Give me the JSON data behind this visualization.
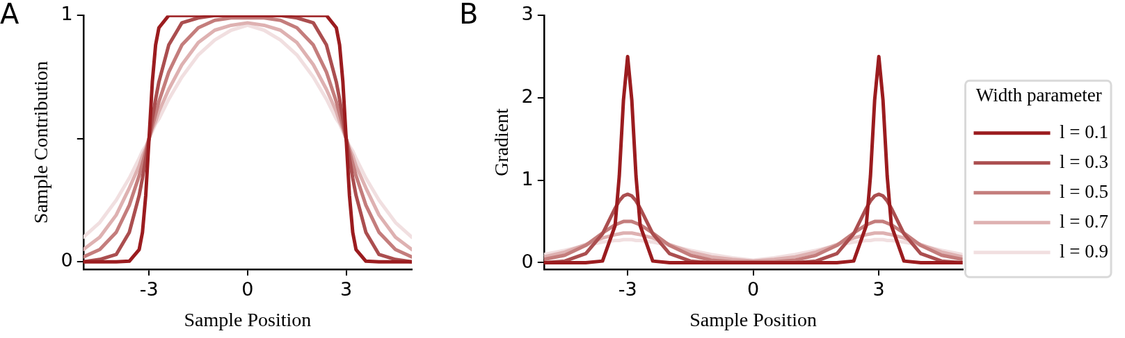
{
  "chart_data": [
    {
      "type": "line",
      "title": "A",
      "xlabel": "Sample Position",
      "ylabel": "Sample Contribution",
      "x": [
        -5,
        -4.5,
        -4,
        -3.6,
        -3.3,
        -3.2,
        -3.1,
        -3,
        -2.9,
        -2.8,
        -2.7,
        -2.4,
        -2,
        -1.5,
        -1,
        -0.5,
        0,
        0.5,
        1,
        1.5,
        2,
        2.4,
        2.7,
        2.8,
        2.9,
        3,
        3.1,
        3.2,
        3.3,
        3.6,
        4,
        4.5,
        5
      ],
      "series": [
        {
          "color": "#9b1c1f",
          "values": [
            0,
            0,
            0,
            0.003,
            0.05,
            0.12,
            0.27,
            0.5,
            0.73,
            0.88,
            0.95,
            1,
            1,
            1,
            1,
            1,
            1,
            1,
            1,
            1,
            1,
            1,
            0.95,
            0.88,
            0.73,
            0.5,
            0.27,
            0.12,
            0.05,
            0.003,
            0,
            0,
            0
          ]
        },
        {
          "color": "#ab4e4f",
          "values": [
            0,
            0.01,
            0.03,
            0.12,
            0.27,
            0.34,
            0.42,
            0.5,
            0.58,
            0.66,
            0.73,
            0.88,
            0.97,
            0.99,
            1,
            1,
            1,
            1,
            1,
            0.99,
            0.97,
            0.88,
            0.73,
            0.66,
            0.58,
            0.5,
            0.42,
            0.34,
            0.27,
            0.12,
            0.03,
            0.01,
            0
          ]
        },
        {
          "color": "#c47d7c",
          "values": [
            0.02,
            0.05,
            0.12,
            0.23,
            0.35,
            0.4,
            0.45,
            0.5,
            0.55,
            0.6,
            0.65,
            0.77,
            0.88,
            0.95,
            0.98,
            0.99,
            0.99,
            0.99,
            0.98,
            0.95,
            0.88,
            0.77,
            0.65,
            0.6,
            0.55,
            0.5,
            0.45,
            0.4,
            0.35,
            0.23,
            0.12,
            0.05,
            0.02
          ]
        },
        {
          "color": "#deb1b1",
          "values": [
            0.05,
            0.1,
            0.19,
            0.3,
            0.39,
            0.43,
            0.46,
            0.5,
            0.54,
            0.57,
            0.61,
            0.7,
            0.8,
            0.89,
            0.94,
            0.96,
            0.97,
            0.96,
            0.94,
            0.89,
            0.8,
            0.7,
            0.61,
            0.57,
            0.54,
            0.5,
            0.46,
            0.43,
            0.39,
            0.3,
            0.19,
            0.1,
            0.05
          ]
        },
        {
          "color": "#f1dfe0",
          "values": [
            0.1,
            0.16,
            0.25,
            0.34,
            0.42,
            0.45,
            0.47,
            0.5,
            0.53,
            0.56,
            0.58,
            0.66,
            0.75,
            0.84,
            0.9,
            0.94,
            0.96,
            0.94,
            0.9,
            0.84,
            0.75,
            0.66,
            0.58,
            0.56,
            0.53,
            0.5,
            0.47,
            0.45,
            0.42,
            0.34,
            0.25,
            0.16,
            0.1
          ]
        }
      ],
      "xlim": [
        -5,
        5
      ],
      "xticks": [
        -3,
        0,
        3
      ],
      "ylim": [
        -0.03,
        1
      ],
      "yticks": [
        0,
        {
          "value": 0.5,
          "label": null
        },
        1
      ],
      "grid": false,
      "legend": false
    },
    {
      "type": "line",
      "title": "B",
      "xlabel": "Sample Position",
      "ylabel": "Gradient",
      "legend_title": "Width parameter",
      "x": [
        -5,
        -4.5,
        -4,
        -3.6,
        -3.3,
        -3.2,
        -3.1,
        -3,
        -2.9,
        -2.8,
        -2.7,
        -2.4,
        -2,
        -1.5,
        -1,
        -0.5,
        0,
        0.5,
        1,
        1.5,
        2,
        2.4,
        2.7,
        2.8,
        2.9,
        3,
        3.1,
        3.2,
        3.3,
        3.6,
        4,
        4.5,
        5
      ],
      "series": [
        {
          "name": "l = 0.1",
          "color": "#9b1c1f",
          "values": [
            0,
            0,
            0,
            0.02,
            0.45,
            1.05,
            1.97,
            2.5,
            1.97,
            1.05,
            0.45,
            0.02,
            0,
            0,
            0,
            0,
            0,
            0,
            0,
            0,
            0,
            0.02,
            0.45,
            1.05,
            1.97,
            2.5,
            1.97,
            1.05,
            0.45,
            0.02,
            0,
            0,
            0
          ]
        },
        {
          "name": "l = 0.3",
          "color": "#ab4e4f",
          "values": [
            0,
            0.02,
            0.11,
            0.35,
            0.66,
            0.75,
            0.81,
            0.83,
            0.81,
            0.75,
            0.66,
            0.35,
            0.11,
            0.02,
            0,
            0,
            0,
            0,
            0,
            0.02,
            0.11,
            0.35,
            0.66,
            0.75,
            0.81,
            0.83,
            0.81,
            0.75,
            0.66,
            0.35,
            0.11,
            0.02,
            0
          ]
        },
        {
          "name": "l = 0.5",
          "color": "#c47d7c",
          "values": [
            0.04,
            0.09,
            0.21,
            0.36,
            0.46,
            0.48,
            0.5,
            0.5,
            0.5,
            0.48,
            0.46,
            0.36,
            0.21,
            0.09,
            0.03,
            0.01,
            0.01,
            0.01,
            0.03,
            0.09,
            0.21,
            0.36,
            0.46,
            0.48,
            0.5,
            0.5,
            0.5,
            0.48,
            0.46,
            0.36,
            0.21,
            0.09,
            0.04
          ]
        },
        {
          "name": "l = 0.7",
          "color": "#deb1b1",
          "values": [
            0.07,
            0.13,
            0.22,
            0.3,
            0.34,
            0.35,
            0.36,
            0.36,
            0.36,
            0.35,
            0.34,
            0.3,
            0.22,
            0.13,
            0.07,
            0.04,
            0.02,
            0.04,
            0.07,
            0.13,
            0.22,
            0.3,
            0.34,
            0.35,
            0.36,
            0.36,
            0.36,
            0.35,
            0.34,
            0.3,
            0.22,
            0.13,
            0.07
          ]
        },
        {
          "name": "l = 0.9",
          "color": "#f1dfe0",
          "values": [
            0.1,
            0.15,
            0.21,
            0.25,
            0.27,
            0.27,
            0.28,
            0.28,
            0.28,
            0.27,
            0.27,
            0.25,
            0.21,
            0.15,
            0.1,
            0.06,
            0.03,
            0.06,
            0.1,
            0.15,
            0.21,
            0.25,
            0.27,
            0.27,
            0.28,
            0.28,
            0.28,
            0.27,
            0.27,
            0.25,
            0.21,
            0.15,
            0.1
          ]
        }
      ],
      "xlim": [
        -5,
        5
      ],
      "xticks": [
        -3,
        0,
        3
      ],
      "ylim": [
        -0.08,
        3
      ],
      "yticks": [
        0,
        1,
        2,
        3
      ],
      "grid": false,
      "legend": "right"
    }
  ]
}
